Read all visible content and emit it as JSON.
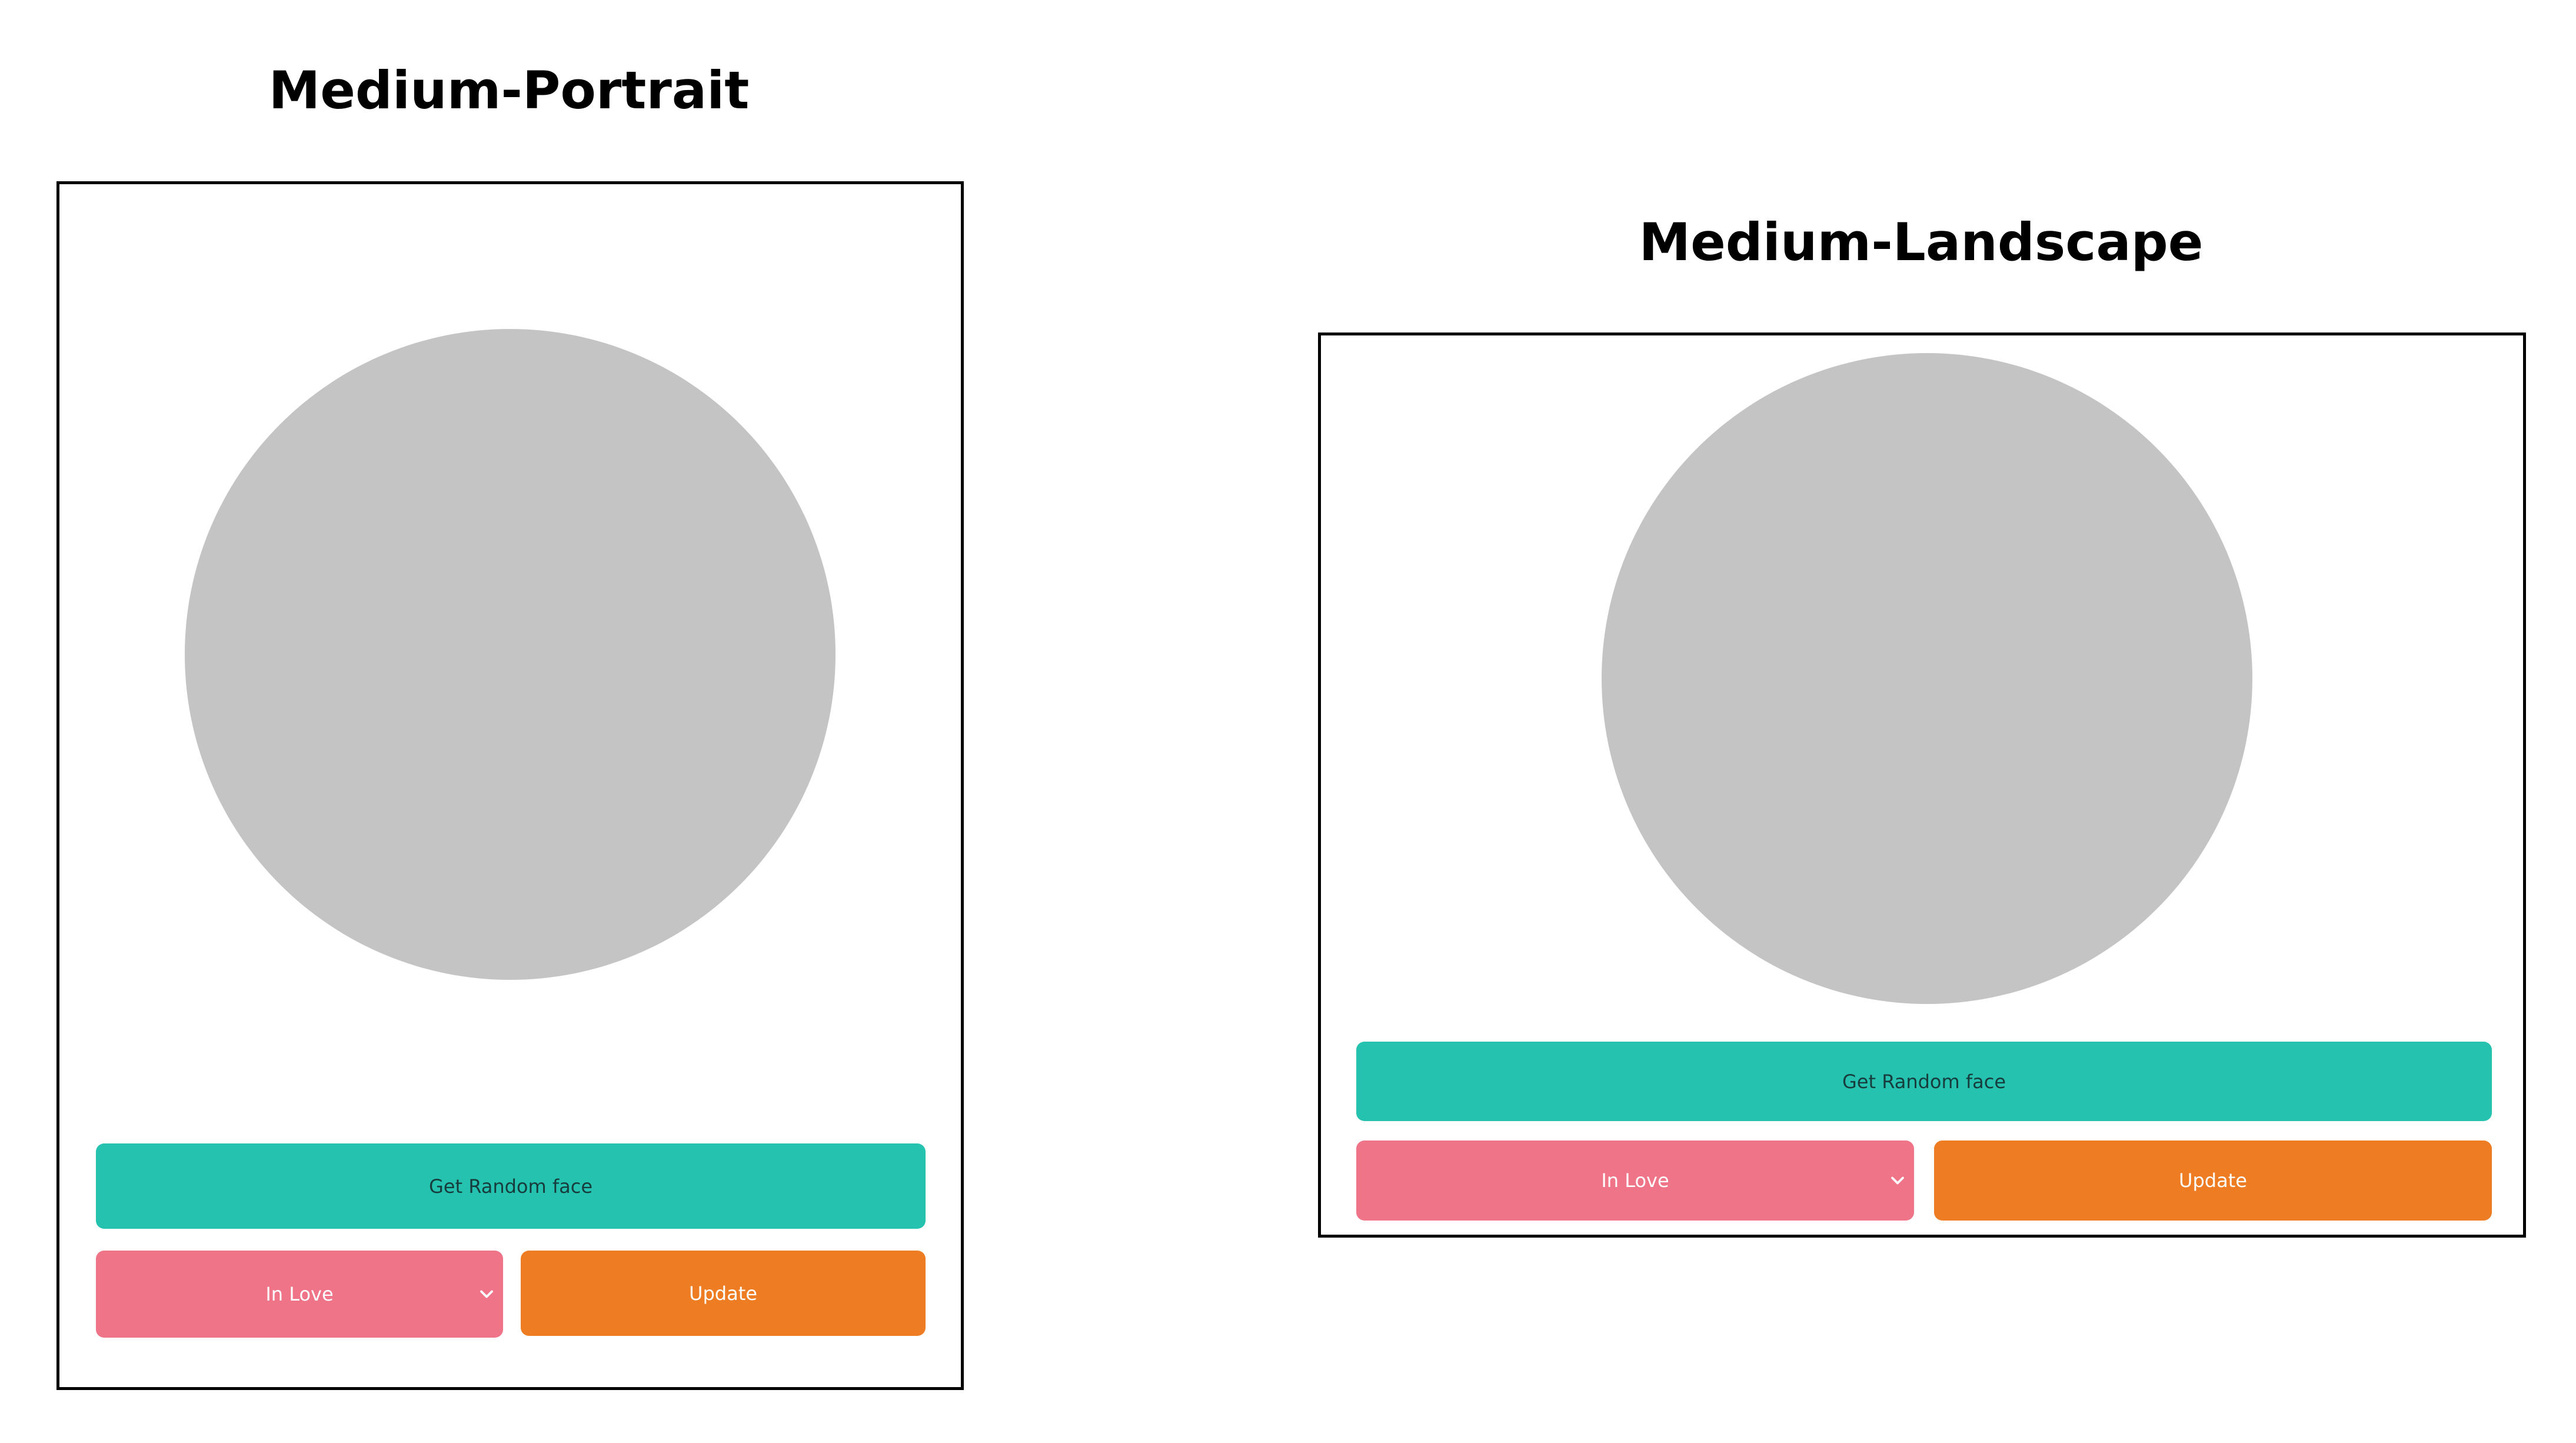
{
  "colors": {
    "face": "#c4c4c4",
    "random_button": "#26c2b0",
    "random_text": "#173c3c",
    "mood_select": "#f07488",
    "update_button": "#ee7c22",
    "light_text": "#ffffff",
    "frame_border": "#000000"
  },
  "icons": {
    "select_arrow": "chevron-down-icon"
  },
  "portrait": {
    "title": "Medium-Portrait",
    "random_label": "Get Random face",
    "mood_selected": "In Love",
    "update_label": "Update"
  },
  "landscape": {
    "title": "Medium-Landscape",
    "random_label": "Get Random face",
    "mood_selected": "In Love",
    "update_label": "Update"
  }
}
